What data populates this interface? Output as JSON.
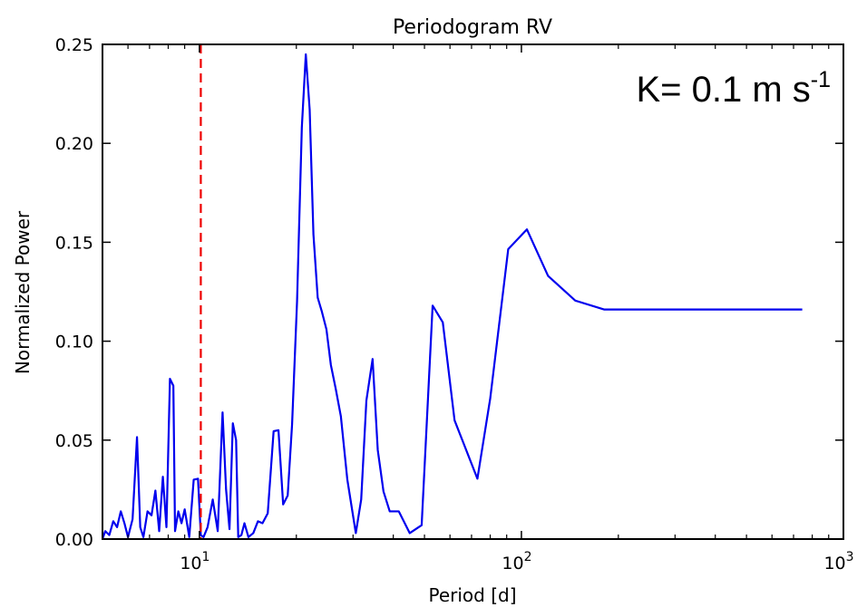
{
  "chart_data": {
    "type": "line",
    "title": "Periodogram RV",
    "xlabel": "Period [d]",
    "ylabel": "Normalized Power",
    "xscale": "log",
    "xlim": [
      5,
      1000
    ],
    "ylim": [
      0,
      0.25
    ],
    "grid": false,
    "x_ticks": [
      {
        "value": 10,
        "base": "10",
        "exp": "1"
      },
      {
        "value": 100,
        "base": "10",
        "exp": "2"
      },
      {
        "value": 1000,
        "base": "10",
        "exp": "3"
      }
    ],
    "y_ticks": [
      {
        "value": 0.0,
        "label": "0.00"
      },
      {
        "value": 0.05,
        "label": "0.05"
      },
      {
        "value": 0.1,
        "label": "0.10"
      },
      {
        "value": 0.15,
        "label": "0.15"
      },
      {
        "value": 0.2,
        "label": "0.20"
      },
      {
        "value": 0.25,
        "label": "0.25"
      }
    ],
    "annotation": {
      "prefix": "K= 0.1 m s",
      "sup": "-1"
    },
    "series": [
      {
        "color": "#0000ee",
        "x": [
          5.0,
          5.1,
          5.25,
          5.4,
          5.55,
          5.7,
          5.85,
          6.0,
          6.2,
          6.4,
          6.55,
          6.7,
          6.9,
          7.1,
          7.3,
          7.5,
          7.7,
          7.9,
          8.1,
          8.3,
          8.4,
          8.6,
          8.8,
          9.0,
          9.3,
          9.6,
          9.9,
          10.1,
          10.3,
          10.6,
          11.0,
          11.4,
          11.8,
          12.1,
          12.4,
          12.7,
          13.0,
          13.2,
          13.5,
          13.8,
          14.2,
          14.7,
          15.2,
          15.7,
          16.3,
          17.0,
          17.6,
          18.2,
          18.8,
          19.4,
          20.1,
          20.8,
          21.4,
          22.0,
          22.6,
          23.3,
          24.0,
          24.8,
          25.6,
          26.5,
          27.5,
          28.8,
          30.6,
          31.8,
          33.0,
          34.5,
          35.8,
          37.3,
          39.0,
          41.6,
          45.0,
          49.0,
          53.0,
          57.0,
          62.0,
          73.0,
          80.0,
          91.0,
          104.0,
          121.0,
          147.0,
          181.0,
          243.0,
          375.0,
          745.0
        ],
        "y": [
          0.0,
          0.004,
          0.002,
          0.009,
          0.006,
          0.014,
          0.008,
          0.001,
          0.01,
          0.0515,
          0.006,
          0.001,
          0.014,
          0.012,
          0.0245,
          0.004,
          0.0315,
          0.006,
          0.081,
          0.0775,
          0.004,
          0.014,
          0.008,
          0.015,
          0.001,
          0.03,
          0.0305,
          0.002,
          0.001,
          0.006,
          0.02,
          0.004,
          0.064,
          0.025,
          0.005,
          0.0585,
          0.05,
          0.001,
          0.002,
          0.008,
          0.001,
          0.003,
          0.009,
          0.008,
          0.013,
          0.0545,
          0.055,
          0.0175,
          0.022,
          0.058,
          0.12,
          0.208,
          0.245,
          0.217,
          0.154,
          0.122,
          0.115,
          0.106,
          0.088,
          0.076,
          0.062,
          0.03,
          0.003,
          0.02,
          0.07,
          0.091,
          0.045,
          0.024,
          0.014,
          0.014,
          0.003,
          0.007,
          0.118,
          0.1095,
          0.06,
          0.0305,
          0.071,
          0.1465,
          0.1565,
          0.133,
          0.1205,
          0.116,
          0.116,
          0.116,
          0.116
        ]
      }
    ],
    "reference_line": {
      "x": 10.1,
      "color": "#ee0000",
      "style": "dashed"
    }
  }
}
